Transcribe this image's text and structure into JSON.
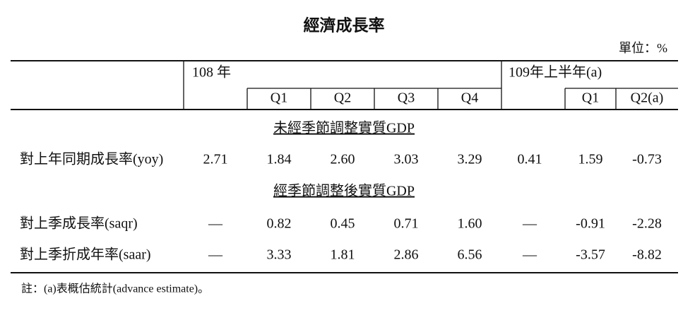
{
  "title": "經濟成長率",
  "unit": "單位：%",
  "header": {
    "year108": "108 年",
    "year109": "109年上半年(a)",
    "quarters108": [
      "Q1",
      "Q2",
      "Q3",
      "Q4"
    ],
    "quarters109": [
      "Q1",
      "Q2(a)"
    ]
  },
  "sections": [
    {
      "title": "未經季節調整實質GDP",
      "rows": [
        {
          "label": "對上年同期成長率(yoy)",
          "cells": [
            "2.71",
            "1.84",
            "2.60",
            "3.03",
            "3.29",
            "0.41",
            "1.59",
            "-0.73"
          ]
        }
      ]
    },
    {
      "title": "經季節調整後實質GDP",
      "rows": [
        {
          "label": "對上季成長率(saqr)",
          "cells": [
            "—",
            "0.82",
            "0.45",
            "0.71",
            "1.60",
            "—",
            "-0.91",
            "-2.28"
          ]
        },
        {
          "label": "對上季折成年率(saar)",
          "cells": [
            "—",
            "3.33",
            "1.81",
            "2.86",
            "6.56",
            "—",
            "-3.57",
            "-8.82"
          ]
        }
      ]
    }
  ],
  "note": "註：(a)表概估統計(advance estimate)。"
}
